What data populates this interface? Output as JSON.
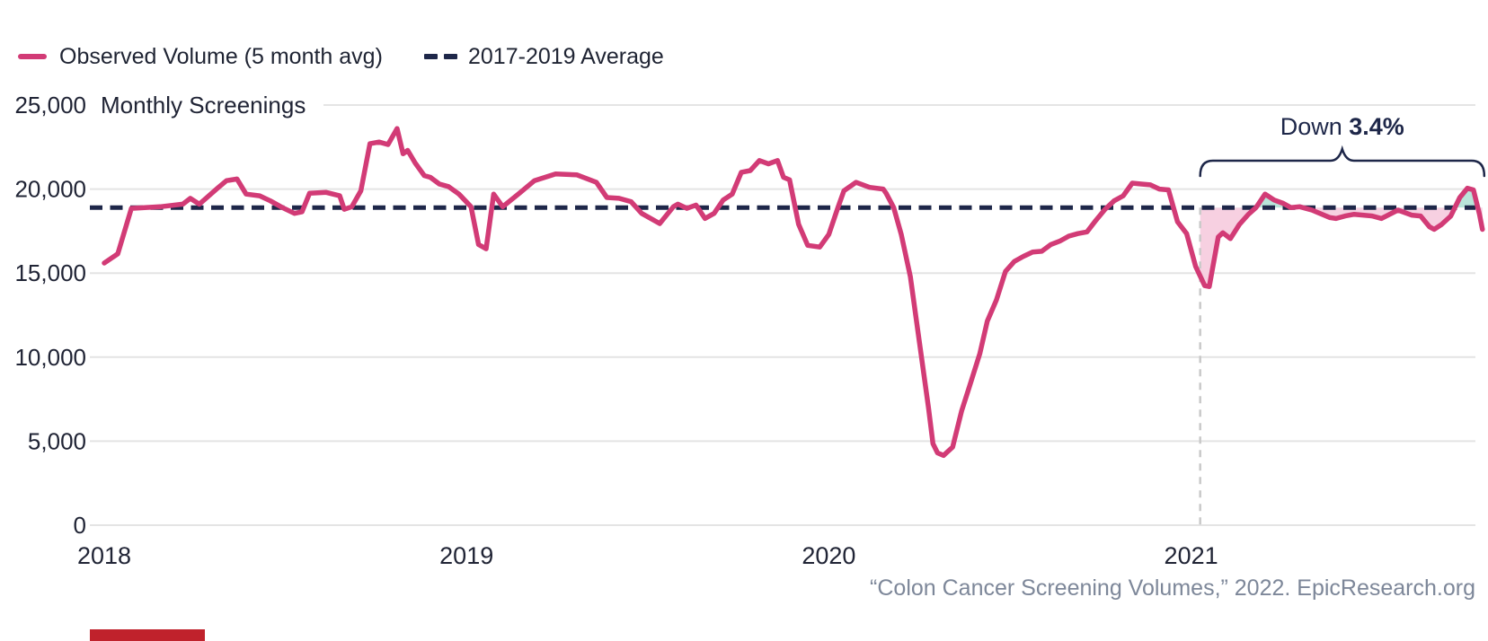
{
  "colors": {
    "observed_line": "#d23b76",
    "average_line": "#1e2749",
    "fill_below_avg": "#f7d0e1",
    "fill_above_avg": "#b9e5da",
    "gridline": "#e4e4e4",
    "axis_text": "#202435",
    "annotation_text": "#1e2749",
    "marker_dash": "#c9c9c9",
    "source_text": "#7d8799",
    "brand_bar": "#c0222c"
  },
  "legend": {
    "items": [
      {
        "label": "Observed Volume (5 month avg)",
        "swatch": "solid-dash"
      },
      {
        "label": "2017-2019 Average",
        "swatch": "double-dash"
      }
    ]
  },
  "annotation": {
    "prefix": "Down ",
    "value": "3.4%"
  },
  "source": {
    "text": "“Colon Cancer Screening Volumes,” 2022. EpicResearch.org"
  },
  "chart_data": {
    "type": "line",
    "y_axis_title": "Monthly Screenings",
    "ylim": [
      0,
      25000
    ],
    "y_ticks": [
      {
        "value": 0,
        "label": "0"
      },
      {
        "value": 5000,
        "label": "5,000"
      },
      {
        "value": 10000,
        "label": "10,000"
      },
      {
        "value": 15000,
        "label": "15,000"
      },
      {
        "value": 20000,
        "label": "20,000"
      },
      {
        "value": 25000,
        "label": "25,000"
      }
    ],
    "x_ticks": [
      {
        "month": 0,
        "label": "2018"
      },
      {
        "month": 12,
        "label": "2019"
      },
      {
        "month": 24,
        "label": "2020"
      },
      {
        "month": 36,
        "label": "2021"
      }
    ],
    "baseline": {
      "name": "2017-2019 Average",
      "value": 18900
    },
    "highlight": {
      "start_month": 36.3,
      "label": "Down 3.4%"
    },
    "series": {
      "name": "Observed Volume (5 month avg)",
      "x_unit": "months since Jan 2018",
      "y_unit": "monthly screenings",
      "points": [
        [
          0,
          15600
        ],
        [
          0.45,
          16150
        ],
        [
          0.9,
          18850
        ],
        [
          1.85,
          18950
        ],
        [
          2.6,
          19100
        ],
        [
          2.85,
          19450
        ],
        [
          3.15,
          19100
        ],
        [
          3.75,
          20050
        ],
        [
          4.05,
          20500
        ],
        [
          4.4,
          20600
        ],
        [
          4.7,
          19700
        ],
        [
          5.15,
          19600
        ],
        [
          5.5,
          19300
        ],
        [
          5.9,
          18900
        ],
        [
          6.3,
          18550
        ],
        [
          6.55,
          18650
        ],
        [
          6.8,
          19750
        ],
        [
          7.35,
          19800
        ],
        [
          7.8,
          19600
        ],
        [
          7.95,
          18800
        ],
        [
          8.2,
          18950
        ],
        [
          8.5,
          19900
        ],
        [
          8.8,
          22700
        ],
        [
          9.1,
          22800
        ],
        [
          9.4,
          22650
        ],
        [
          9.7,
          23600
        ],
        [
          9.9,
          22100
        ],
        [
          10.05,
          22300
        ],
        [
          10.3,
          21550
        ],
        [
          10.6,
          20800
        ],
        [
          10.8,
          20700
        ],
        [
          11.1,
          20300
        ],
        [
          11.4,
          20150
        ],
        [
          11.75,
          19700
        ],
        [
          12.15,
          18950
        ],
        [
          12.4,
          16700
        ],
        [
          12.65,
          16450
        ],
        [
          12.9,
          19700
        ],
        [
          13.2,
          18950
        ],
        [
          13.75,
          19750
        ],
        [
          14.25,
          20500
        ],
        [
          14.95,
          20900
        ],
        [
          15.65,
          20850
        ],
        [
          16.3,
          20400
        ],
        [
          16.65,
          19500
        ],
        [
          17.05,
          19450
        ],
        [
          17.45,
          19250
        ],
        [
          17.8,
          18550
        ],
        [
          18.4,
          17950
        ],
        [
          18.85,
          18950
        ],
        [
          19.0,
          19100
        ],
        [
          19.3,
          18850
        ],
        [
          19.6,
          19050
        ],
        [
          19.9,
          18250
        ],
        [
          20.2,
          18550
        ],
        [
          20.5,
          19350
        ],
        [
          20.8,
          19700
        ],
        [
          21.1,
          21000
        ],
        [
          21.4,
          21100
        ],
        [
          21.7,
          21700
        ],
        [
          22.0,
          21500
        ],
        [
          22.3,
          21700
        ],
        [
          22.5,
          20700
        ],
        [
          22.7,
          20550
        ],
        [
          23.0,
          17900
        ],
        [
          23.3,
          16650
        ],
        [
          23.7,
          16550
        ],
        [
          24.0,
          17300
        ],
        [
          24.3,
          18900
        ],
        [
          24.5,
          19900
        ],
        [
          24.9,
          20400
        ],
        [
          25.35,
          20100
        ],
        [
          25.8,
          20000
        ],
        [
          25.9,
          19750
        ],
        [
          26.15,
          18900
        ],
        [
          26.4,
          17300
        ],
        [
          26.7,
          14800
        ],
        [
          27.0,
          10900
        ],
        [
          27.3,
          7000
        ],
        [
          27.45,
          4850
        ],
        [
          27.6,
          4300
        ],
        [
          27.8,
          4150
        ],
        [
          28.1,
          4650
        ],
        [
          28.4,
          6800
        ],
        [
          28.65,
          8200
        ],
        [
          29.0,
          10200
        ],
        [
          29.25,
          12150
        ],
        [
          29.55,
          13400
        ],
        [
          29.85,
          15100
        ],
        [
          30.15,
          15700
        ],
        [
          30.45,
          16000
        ],
        [
          30.75,
          16250
        ],
        [
          31.05,
          16300
        ],
        [
          31.35,
          16700
        ],
        [
          31.65,
          16900
        ],
        [
          31.95,
          17200
        ],
        [
          32.25,
          17350
        ],
        [
          32.55,
          17450
        ],
        [
          32.85,
          18150
        ],
        [
          33.15,
          18800
        ],
        [
          33.45,
          19300
        ],
        [
          33.75,
          19600
        ],
        [
          34.05,
          20350
        ],
        [
          34.35,
          20300
        ],
        [
          34.65,
          20250
        ],
        [
          34.95,
          20000
        ],
        [
          35.25,
          19950
        ],
        [
          35.55,
          18050
        ],
        [
          35.85,
          17350
        ],
        [
          36.15,
          15400
        ],
        [
          36.45,
          14250
        ],
        [
          36.6,
          14200
        ],
        [
          36.9,
          17150
        ],
        [
          37.05,
          17400
        ],
        [
          37.3,
          17050
        ],
        [
          37.6,
          17900
        ],
        [
          37.9,
          18500
        ],
        [
          38.15,
          18900
        ],
        [
          38.45,
          19700
        ],
        [
          38.75,
          19350
        ],
        [
          39.05,
          19150
        ],
        [
          39.3,
          18900
        ],
        [
          39.6,
          18950
        ],
        [
          40.0,
          18750
        ],
        [
          40.6,
          18300
        ],
        [
          40.8,
          18250
        ],
        [
          41.1,
          18400
        ],
        [
          41.4,
          18500
        ],
        [
          42.0,
          18400
        ],
        [
          42.3,
          18250
        ],
        [
          42.85,
          18750
        ],
        [
          43.3,
          18450
        ],
        [
          43.6,
          18400
        ],
        [
          43.9,
          17750
        ],
        [
          44.05,
          17600
        ],
        [
          44.3,
          17900
        ],
        [
          44.6,
          18400
        ],
        [
          44.9,
          19500
        ],
        [
          45.15,
          20050
        ],
        [
          45.35,
          19950
        ],
        [
          45.55,
          18500
        ],
        [
          45.65,
          17600
        ]
      ]
    }
  }
}
